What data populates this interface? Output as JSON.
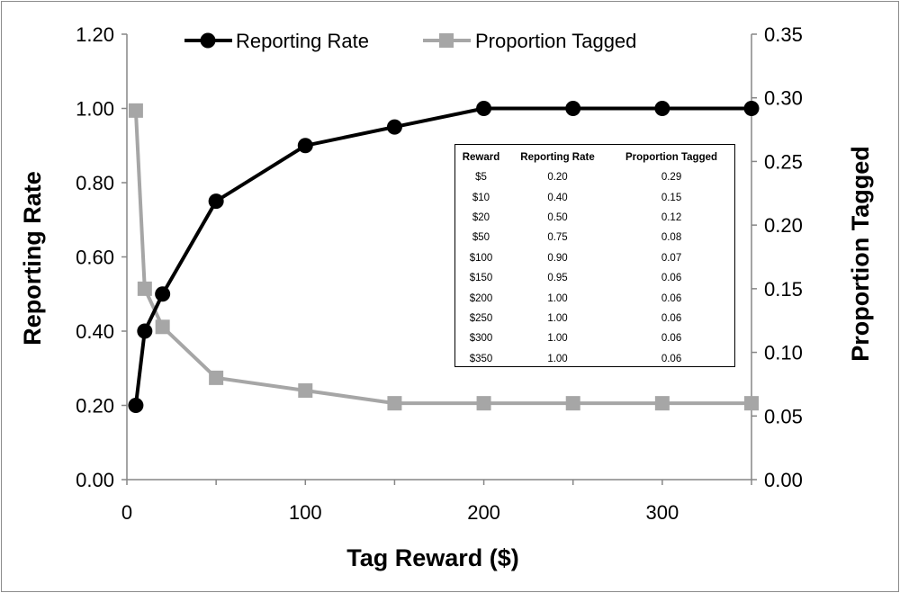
{
  "chart_data": {
    "type": "line",
    "xlabel": "Tag Reward ($)",
    "ylabel": "Reporting Rate",
    "y2label": "Proportion Tagged",
    "xlim": [
      0,
      350
    ],
    "ylim": [
      0,
      1.2
    ],
    "y2lim": [
      0,
      0.35
    ],
    "xticks": [
      "0",
      "100",
      "200",
      "300"
    ],
    "yticks": [
      "0.00",
      "0.20",
      "0.40",
      "0.60",
      "0.80",
      "1.00",
      "1.20"
    ],
    "y2ticks": [
      "0.00",
      "0.05",
      "0.10",
      "0.15",
      "0.20",
      "0.25",
      "0.30",
      "0.35"
    ],
    "legend_position": "top",
    "grid": false,
    "series": [
      {
        "name": "Reporting Rate",
        "axis": "left",
        "color": "#000000",
        "marker": "circle",
        "x": [
          5,
          10,
          20,
          50,
          100,
          150,
          200,
          250,
          300,
          350
        ],
        "values": [
          0.2,
          0.4,
          0.5,
          0.75,
          0.9,
          0.95,
          1.0,
          1.0,
          1.0,
          1.0
        ]
      },
      {
        "name": "Proportion Tagged",
        "axis": "right",
        "color": "#a6a6a6",
        "marker": "square",
        "x": [
          5,
          10,
          20,
          50,
          100,
          150,
          200,
          250,
          300,
          350
        ],
        "values": [
          0.29,
          0.15,
          0.12,
          0.08,
          0.07,
          0.06,
          0.06,
          0.06,
          0.06,
          0.06
        ]
      }
    ],
    "table": {
      "headers": [
        "Reward",
        "Reporting Rate",
        "Proportion Tagged"
      ],
      "rows": [
        [
          "$5",
          "0.20",
          "0.29"
        ],
        [
          "$10",
          "0.40",
          "0.15"
        ],
        [
          "$20",
          "0.50",
          "0.12"
        ],
        [
          "$50",
          "0.75",
          "0.08"
        ],
        [
          "$100",
          "0.90",
          "0.07"
        ],
        [
          "$150",
          "0.95",
          "0.06"
        ],
        [
          "$200",
          "1.00",
          "0.06"
        ],
        [
          "$250",
          "1.00",
          "0.06"
        ],
        [
          "$300",
          "1.00",
          "0.06"
        ],
        [
          "$350",
          "1.00",
          "0.06"
        ]
      ]
    }
  }
}
